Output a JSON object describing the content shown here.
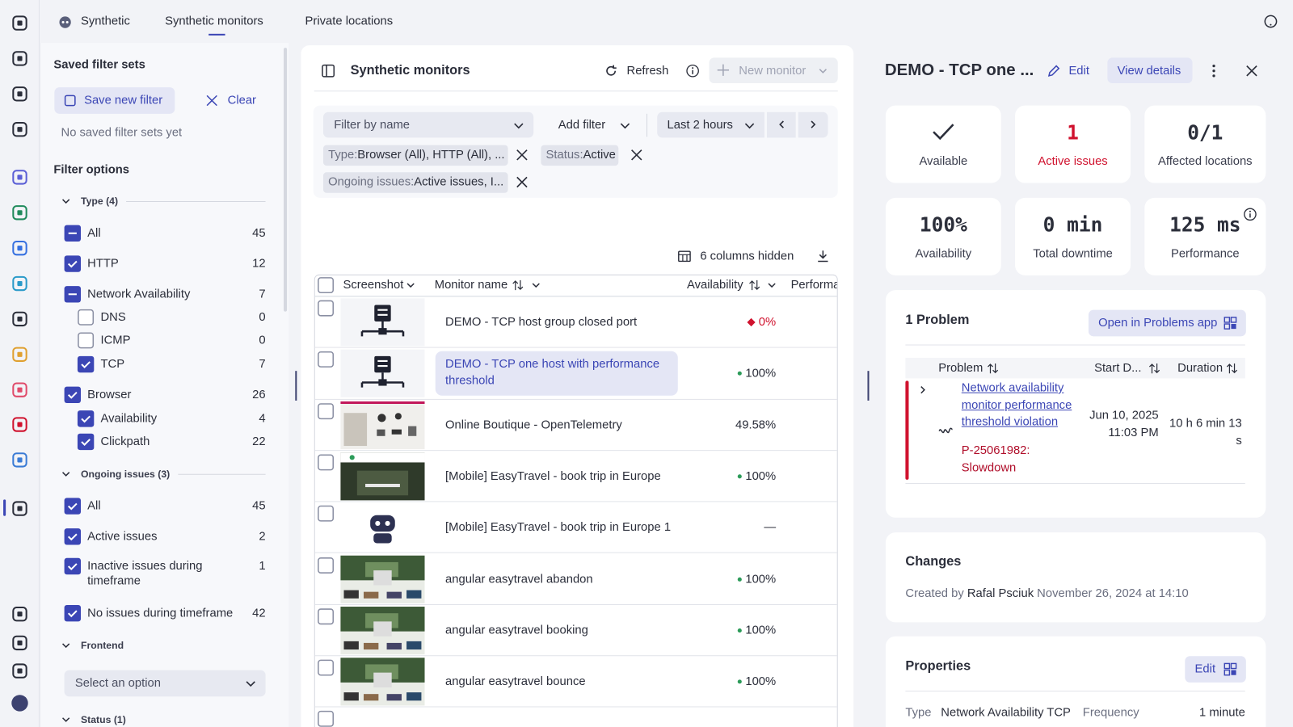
{
  "tabs": {
    "app": "Synthetic",
    "items": [
      "Synthetic monitors",
      "Private locations"
    ]
  },
  "filters": {
    "saved_title": "Saved filter sets",
    "save_button": "Save new filter",
    "clear_button": "Clear",
    "empty_text": "No saved filter sets yet",
    "options_title": "Filter options",
    "groups": [
      {
        "label": "Type (4)",
        "items": [
          {
            "label": "All",
            "count": 45,
            "state": "partial",
            "level": 0
          },
          {
            "label": "HTTP",
            "count": 12,
            "state": "checked",
            "level": 0
          },
          {
            "label": "Network Availability",
            "count": 7,
            "state": "partial",
            "level": 0
          },
          {
            "label": "DNS",
            "count": 0,
            "state": "unchecked",
            "level": 1
          },
          {
            "label": "ICMP",
            "count": 0,
            "state": "unchecked",
            "level": 1
          },
          {
            "label": "TCP",
            "count": 7,
            "state": "checked",
            "level": 1
          },
          {
            "label": "Browser",
            "count": 26,
            "state": "checked",
            "level": 0
          },
          {
            "label": "Availability",
            "count": 4,
            "state": "checked",
            "level": 1
          },
          {
            "label": "Clickpath",
            "count": 22,
            "state": "checked",
            "level": 1
          }
        ]
      },
      {
        "label": "Ongoing issues (3)",
        "items": [
          {
            "label": "All",
            "count": 45,
            "state": "checked",
            "level": 0
          },
          {
            "label": "Active issues",
            "count": 2,
            "state": "checked",
            "level": 0
          },
          {
            "label": "Inactive issues during timeframe",
            "count": 1,
            "state": "checked",
            "level": 0
          },
          {
            "label": "No issues during timeframe",
            "count": 42,
            "state": "checked",
            "level": 0
          }
        ]
      },
      {
        "label": "Frontend",
        "select": "Select an option"
      },
      {
        "label": "Status (1)"
      }
    ]
  },
  "monitors": {
    "title": "Synthetic monitors",
    "refresh": "Refresh",
    "new_monitor": "New monitor",
    "filter_placeholder": "Filter by name",
    "add_filter": "Add filter",
    "timeframe": "Last 2 hours",
    "separator": ":",
    "chips": [
      {
        "key": "Type",
        "value": "Browser (All), HTTP (All), ..."
      },
      {
        "key": "Status",
        "value": "Active"
      },
      {
        "key": "Ongoing issues",
        "value": "Active issues, I..."
      }
    ],
    "hidden_columns": "6 columns hidden",
    "columns": [
      "Screenshot",
      "Monitor name",
      "Availability",
      "Performa"
    ],
    "rows": [
      {
        "name": "DEMO - TCP host group closed port",
        "availability": "0%",
        "status": "critical",
        "thumb": "ip",
        "selected": false
      },
      {
        "name": "DEMO - TCP one host with performance threshold",
        "availability": "100%",
        "status": "ok",
        "thumb": "ip",
        "selected": true
      },
      {
        "name": "Online Boutique - OpenTelemetry",
        "availability": "49.58%",
        "status": "none",
        "thumb": "shop",
        "selected": false
      },
      {
        "name": "[Mobile] EasyTravel - book trip in Europe",
        "availability": "100%",
        "status": "ok",
        "thumb": "easy",
        "selected": false
      },
      {
        "name": "[Mobile] EasyTravel - book trip in Europe 1",
        "availability": "—",
        "status": "none",
        "thumb": "robot",
        "selected": false
      },
      {
        "name": "angular easytravel abandon",
        "availability": "100%",
        "status": "ok",
        "thumb": "forest",
        "selected": false
      },
      {
        "name": "angular easytravel booking",
        "availability": "100%",
        "status": "ok",
        "thumb": "forest",
        "selected": false
      },
      {
        "name": "angular easytravel bounce",
        "availability": "100%",
        "status": "ok",
        "thumb": "forest",
        "selected": false
      }
    ]
  },
  "details": {
    "title": "DEMO - TCP one ...",
    "edit": "Edit",
    "view_details": "View details",
    "tiles": [
      {
        "label": "Available"
      },
      {
        "value": "1",
        "label": "Active issues"
      },
      {
        "value": "0/1",
        "label": "Affected locations"
      },
      {
        "value": "100%",
        "label": "Availability"
      },
      {
        "value": "0 min",
        "label": "Total downtime"
      },
      {
        "value": "125 ms",
        "label": "Performance"
      }
    ],
    "problems": {
      "title": "1 Problem",
      "open": "Open in Problems app",
      "columns": [
        "Problem",
        "Start D...",
        "Duration"
      ],
      "row": {
        "name": "Network availability monitor performance threshold violation",
        "id": "P-25061982: Slowdown",
        "start": "Jun 10, 2025 11:03 PM",
        "duration": "10 h 6 min 13 s"
      }
    },
    "changes": {
      "title": "Changes",
      "prefix": "Created by",
      "author": "Rafal Psciuk",
      "date": "November 26, 2024 at 14:10"
    },
    "properties": {
      "title": "Properties",
      "edit": "Edit",
      "items": [
        {
          "key": "Type",
          "value": "Network Availability TCP"
        },
        {
          "key": "Frequency",
          "value": "1 minute"
        }
      ]
    }
  }
}
